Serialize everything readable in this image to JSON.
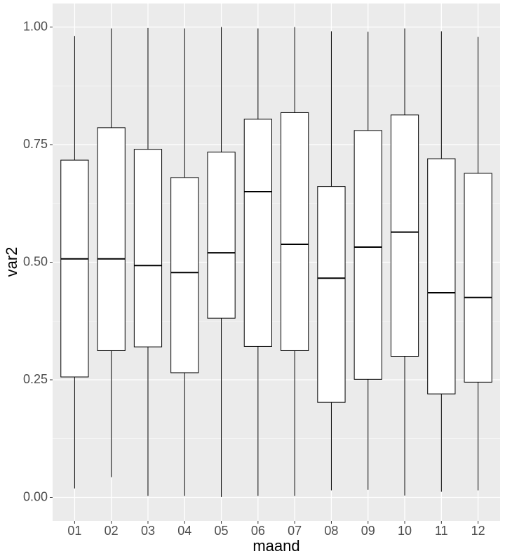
{
  "chart_data": {
    "type": "boxplot",
    "x_label": "maand",
    "y_label": "var2",
    "categories": [
      "01",
      "02",
      "03",
      "04",
      "05",
      "06",
      "07",
      "08",
      "09",
      "10",
      "11",
      "12"
    ],
    "boxes": [
      {
        "low": 0.019,
        "q1": 0.256,
        "median": 0.507,
        "q3": 0.717,
        "high": 0.981
      },
      {
        "low": 0.043,
        "q1": 0.312,
        "median": 0.507,
        "q3": 0.786,
        "high": 0.997
      },
      {
        "low": 0.003,
        "q1": 0.32,
        "median": 0.493,
        "q3": 0.74,
        "high": 0.998
      },
      {
        "low": 0.003,
        "q1": 0.265,
        "median": 0.478,
        "q3": 0.68,
        "high": 0.997
      },
      {
        "low": 0.001,
        "q1": 0.381,
        "median": 0.52,
        "q3": 0.734,
        "high": 1.0
      },
      {
        "low": 0.003,
        "q1": 0.321,
        "median": 0.65,
        "q3": 0.804,
        "high": 0.997
      },
      {
        "low": 0.003,
        "q1": 0.312,
        "median": 0.538,
        "q3": 0.818,
        "high": 1.0
      },
      {
        "low": 0.015,
        "q1": 0.202,
        "median": 0.466,
        "q3": 0.661,
        "high": 0.991
      },
      {
        "low": 0.016,
        "q1": 0.251,
        "median": 0.532,
        "q3": 0.78,
        "high": 0.99
      },
      {
        "low": 0.004,
        "q1": 0.3,
        "median": 0.564,
        "q3": 0.813,
        "high": 0.997
      },
      {
        "low": 0.012,
        "q1": 0.22,
        "median": 0.435,
        "q3": 0.72,
        "high": 0.991
      },
      {
        "low": 0.015,
        "q1": 0.245,
        "median": 0.425,
        "q3": 0.689,
        "high": 0.979
      }
    ],
    "color": "#ffffff",
    "line_color": "#000000",
    "ylim": [
      -0.05,
      1.05
    ],
    "yticks": [
      {
        "value": 0,
        "label": "0.00"
      },
      0.25,
      {
        "value": 0.5,
        "label": "0.50"
      },
      0.75,
      {
        "value": 1,
        "label": "1.00"
      }
    ],
    "grid": true
  }
}
